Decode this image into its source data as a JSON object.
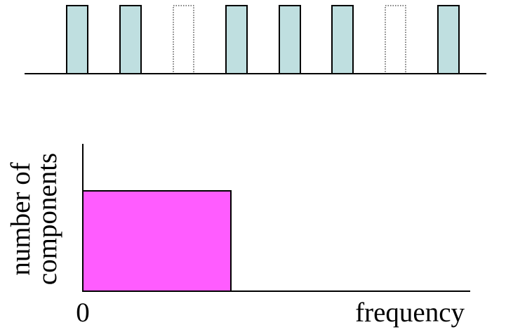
{
  "pulse_train": {
    "pulses": [
      {
        "index": 1,
        "style": "filled"
      },
      {
        "index": 2,
        "style": "filled"
      },
      {
        "index": 3,
        "style": "dotted-outline"
      },
      {
        "index": 4,
        "style": "filled"
      },
      {
        "index": 5,
        "style": "filled"
      },
      {
        "index": 6,
        "style": "filled"
      },
      {
        "index": 7,
        "style": "dotted-outline"
      },
      {
        "index": 8,
        "style": "filled"
      }
    ],
    "colors": {
      "pulse_fill": "#BFDFE0",
      "pulse_stroke": "#000000",
      "baseline": "#000000"
    }
  },
  "spectrum_plot": {
    "ylabel_line1": "number of",
    "ylabel_line2": "components",
    "x_origin_label": "0",
    "xlabel": "frequency",
    "colors": {
      "band_fill": "#FF5CFF",
      "band_stroke": "#000000",
      "axis": "#000000"
    }
  }
}
